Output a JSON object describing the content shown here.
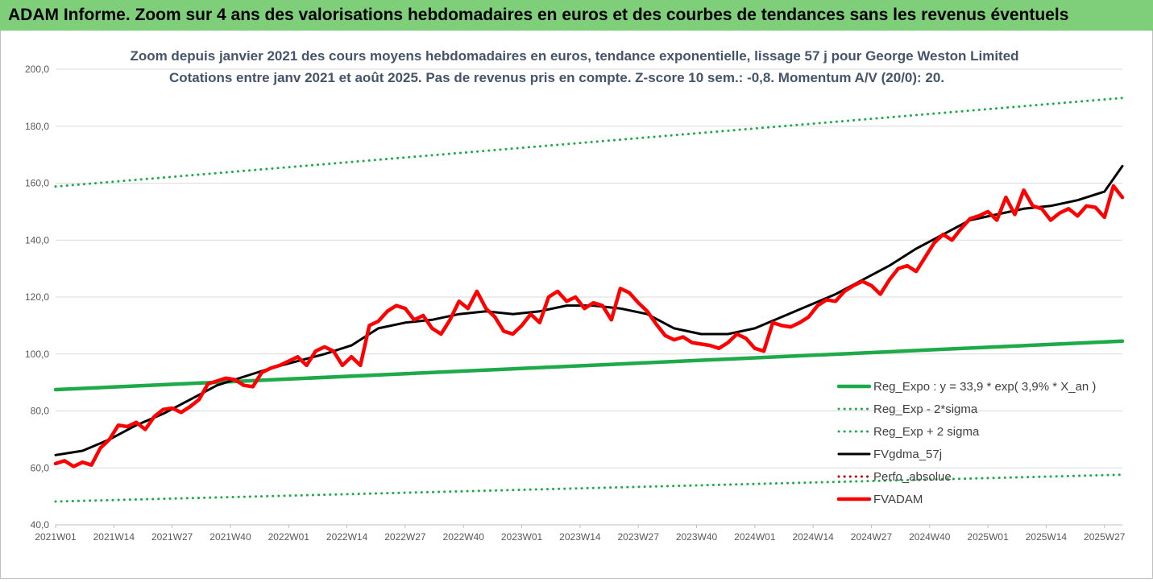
{
  "banner": {
    "title": "ADAM Informe. Zoom sur 4 ans des valorisations hebdomadaires en euros et des courbes de tendances sans les revenus éventuels",
    "background": "#7fcf7a"
  },
  "chart_data": {
    "type": "line",
    "title": "Zoom depuis janvier 2021 des cours moyens hebdomadaires en euros, tendance exponentielle, lissage 57 j pour George Weston Limited",
    "subtitle": "Cotations entre janv 2021 et août 2025.  Pas de revenus pris en compte. Z-score 10 sem.: -0,8. Momentum A/V (20/0): 20.",
    "xlabel": "",
    "ylabel": "",
    "ylim": [
      40,
      200
    ],
    "y_ticks": [
      "40,0",
      "60,0",
      "80,0",
      "100,0",
      "120,0",
      "140,0",
      "160,0",
      "180,0",
      "200,0"
    ],
    "x_ticks": [
      "2021W01",
      "2021W14",
      "2021W27",
      "2021W40",
      "2022W01",
      "2022W14",
      "2022W27",
      "2022W40",
      "2023W01",
      "2023W14",
      "2023W27",
      "2023W40",
      "2024W01",
      "2024W14",
      "2024W27",
      "2024W40",
      "2025W01",
      "2025W14",
      "2025W27"
    ],
    "n_weeks": 239,
    "grid": "horizontal",
    "legend_position": "lower-right",
    "series": [
      {
        "name": "Reg_Expo : y = 33,9 * exp( 3,9% *  X_an )",
        "color": "#1faa4a",
        "style": "solid-thick",
        "x": [
          0,
          238
        ],
        "values": [
          87.5,
          104.5
        ]
      },
      {
        "name": "Reg_Exp - 2*sigma",
        "color": "#1faa4a",
        "style": "dotted",
        "x": [
          0,
          238
        ],
        "values": [
          48.2,
          57.6
        ]
      },
      {
        "name": "Reg_Exp + 2 sigma",
        "color": "#1faa4a",
        "style": "dotted",
        "x": [
          0,
          238
        ],
        "values": [
          158.8,
          189.9
        ]
      },
      {
        "name": "FVgdma_57j",
        "color": "#000000",
        "style": "solid",
        "x": [
          0,
          6,
          12,
          18,
          24,
          30,
          36,
          42,
          48,
          54,
          60,
          66,
          72,
          78,
          84,
          90,
          96,
          102,
          108,
          114,
          120,
          126,
          132,
          138,
          144,
          150,
          156,
          162,
          168,
          174,
          180,
          186,
          192,
          198,
          204,
          210,
          216,
          222,
          228,
          234,
          238
        ],
        "values": [
          64.5,
          66,
          70,
          75,
          79,
          84,
          89,
          92,
          95,
          97.5,
          100,
          103,
          109,
          111,
          112,
          114,
          115,
          114,
          115,
          117,
          117,
          116,
          114,
          109,
          107,
          107,
          109,
          113,
          117,
          121,
          126,
          131,
          137,
          142,
          147,
          149,
          151,
          152,
          154,
          157,
          166
        ]
      },
      {
        "name": "Perfo_absolue",
        "color": "#c00000",
        "style": "dotted",
        "x": [],
        "values": []
      },
      {
        "name": "FVADAM",
        "color": "#ff0000",
        "style": "solid-thick",
        "x": [
          0,
          2,
          4,
          6,
          8,
          10,
          12,
          14,
          16,
          18,
          20,
          22,
          24,
          26,
          28,
          30,
          32,
          34,
          36,
          38,
          40,
          42,
          44,
          46,
          48,
          50,
          52,
          54,
          56,
          58,
          60,
          62,
          64,
          66,
          68,
          70,
          72,
          74,
          76,
          78,
          80,
          82,
          84,
          86,
          88,
          90,
          92,
          94,
          96,
          98,
          100,
          102,
          104,
          106,
          108,
          110,
          112,
          114,
          116,
          118,
          120,
          122,
          124,
          126,
          128,
          130,
          132,
          134,
          136,
          138,
          140,
          142,
          144,
          146,
          148,
          150,
          152,
          154,
          156,
          158,
          160,
          162,
          164,
          166,
          168,
          170,
          172,
          174,
          176,
          178,
          180,
          182,
          184,
          186,
          188,
          190,
          192,
          194,
          196,
          198,
          200,
          202,
          204,
          206,
          208,
          210,
          212,
          214,
          216,
          218,
          220,
          222,
          224,
          226,
          228,
          230,
          232,
          234,
          236,
          238
        ],
        "values": [
          61.5,
          62.5,
          60.5,
          62,
          61,
          67,
          70,
          75,
          74.5,
          76,
          73.5,
          78,
          80.5,
          81,
          79.5,
          81.5,
          84,
          89.5,
          90.5,
          91.5,
          91,
          89,
          88.5,
          93.5,
          95,
          96,
          97.5,
          99,
          96,
          101,
          102.5,
          101,
          96,
          99,
          96,
          110,
          111.5,
          115,
          117,
          116,
          112,
          113.5,
          109,
          107,
          112,
          118.5,
          116,
          122,
          116,
          113,
          108,
          107,
          110,
          114,
          111,
          120,
          122,
          118.5,
          120,
          116,
          118,
          117,
          112,
          123,
          121.5,
          118,
          115,
          110.5,
          106.5,
          105,
          106,
          104,
          103.5,
          103,
          102,
          104,
          107,
          105.5,
          102,
          101,
          111,
          110,
          109.5,
          111,
          113,
          117,
          119,
          118.5,
          122,
          124,
          125.5,
          124,
          121,
          126,
          130,
          131,
          129,
          134,
          139,
          142,
          140,
          144,
          147.5,
          148.5,
          150,
          147,
          155,
          149,
          157.5,
          152,
          151,
          147,
          149.5,
          151,
          148.5,
          152,
          151.5,
          148,
          159,
          155
        ]
      }
    ]
  }
}
